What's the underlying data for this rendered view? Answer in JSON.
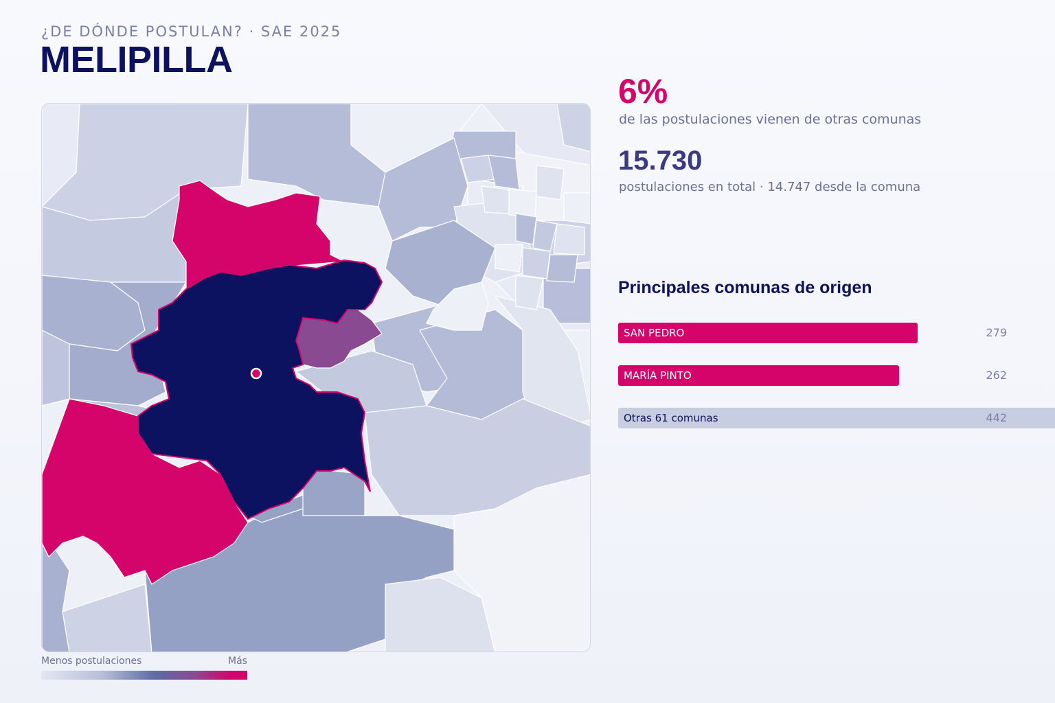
{
  "header": {
    "eyebrow": "¿DE DÓNDE POSTULAN? · SAE 2025",
    "title": "MELIPILLA"
  },
  "stats": {
    "percent": "6%",
    "percent_desc": "de las postulaciones vienen de otras comunas",
    "total": "15.730",
    "total_desc": "postulaciones en total · 14.747 desde la comuna"
  },
  "origins": {
    "title": "Principales comunas de origen",
    "items": [
      {
        "label": "SAN PEDRO",
        "value": "279"
      },
      {
        "label": "MARÍA PINTO",
        "value": "262"
      },
      {
        "label": "Otras 61 comunas",
        "value": "442"
      }
    ]
  },
  "legend": {
    "low": "Menos postulaciones",
    "high": "Más"
  },
  "colors": {
    "selected": "#0c1160",
    "top_origin": "#d4046a",
    "mid_origin": "#8a4a92",
    "accent_total": "#3b3a85"
  }
}
